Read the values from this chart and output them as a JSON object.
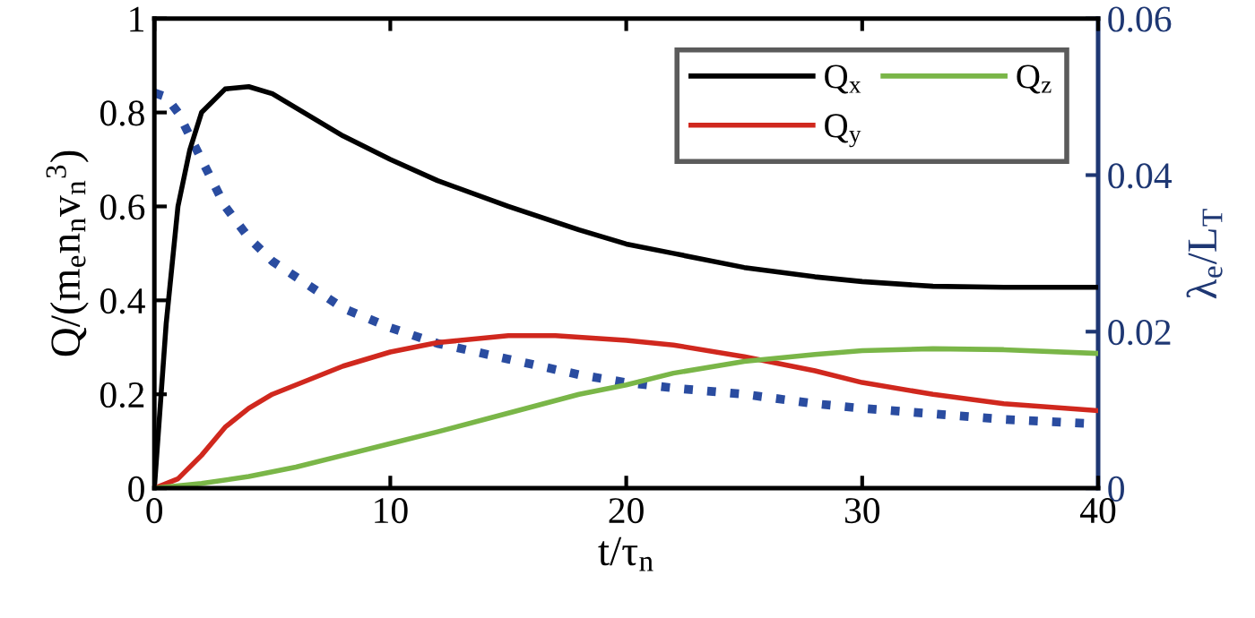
{
  "chart_data": {
    "type": "line",
    "xlabel": "t/τ$_{n}$",
    "ylabel": "Q/(m$_{e}$n$_{n}$v$_{n}$$^{3}$)",
    "y2label": "λ$_{e}$/L$_{T}$",
    "xlim": [
      0,
      40
    ],
    "xticks": [
      0,
      10,
      20,
      30,
      40
    ],
    "ylim": [
      0,
      1
    ],
    "yticks": [
      0,
      0.2,
      0.4,
      0.6,
      0.8,
      1
    ],
    "y2lim": [
      0,
      0.06
    ],
    "y2ticks": [
      0,
      0.02,
      0.04,
      0.06
    ],
    "legend": "top right",
    "line_style": "solid",
    "marker": "none",
    "series": [
      {
        "name": "Q$_{x}$",
        "color": "#000000",
        "x": [
          0,
          0.5,
          1,
          1.5,
          2,
          3,
          4,
          5,
          6,
          8,
          10,
          12,
          15,
          18,
          20,
          22,
          25,
          28,
          30,
          33,
          36,
          40
        ],
        "values": [
          0,
          0.35,
          0.6,
          0.72,
          0.8,
          0.85,
          0.855,
          0.84,
          0.81,
          0.75,
          0.7,
          0.655,
          0.6,
          0.55,
          0.52,
          0.5,
          0.47,
          0.45,
          0.44,
          0.43,
          0.428,
          0.428
        ]
      },
      {
        "name": "Q$_{y}$",
        "color": "#d0281e",
        "x": [
          0,
          1,
          2,
          3,
          4,
          5,
          6,
          8,
          10,
          12,
          15,
          17,
          20,
          22,
          25,
          28,
          30,
          33,
          36,
          40
        ],
        "values": [
          0,
          0.02,
          0.07,
          0.13,
          0.17,
          0.2,
          0.22,
          0.26,
          0.29,
          0.31,
          0.325,
          0.325,
          0.315,
          0.305,
          0.28,
          0.25,
          0.225,
          0.2,
          0.18,
          0.165
        ]
      },
      {
        "name": "Q$_{z}$",
        "color": "#7ab648",
        "x": [
          0,
          2,
          4,
          6,
          8,
          10,
          12,
          15,
          18,
          20,
          22,
          25,
          28,
          30,
          33,
          36,
          40
        ],
        "values": [
          0,
          0.01,
          0.025,
          0.045,
          0.07,
          0.095,
          0.12,
          0.16,
          0.2,
          0.22,
          0.245,
          0.27,
          0.285,
          0.293,
          0.297,
          0.295,
          0.287
        ]
      },
      {
        "color": "#2a4ca0",
        "axis": "y2",
        "line_style": "dotted",
        "x": [
          0,
          0.5,
          1,
          1.5,
          2,
          3,
          4,
          5,
          6,
          8,
          10,
          12,
          15,
          18,
          20,
          22,
          25,
          28,
          30,
          33,
          36,
          40
        ],
        "values": [
          0.0505,
          0.05,
          0.048,
          0.045,
          0.042,
          0.036,
          0.032,
          0.029,
          0.027,
          0.023,
          0.0205,
          0.0185,
          0.0165,
          0.0145,
          0.0135,
          0.0128,
          0.012,
          0.0108,
          0.0102,
          0.0095,
          0.0088,
          0.0082
        ]
      }
    ]
  }
}
